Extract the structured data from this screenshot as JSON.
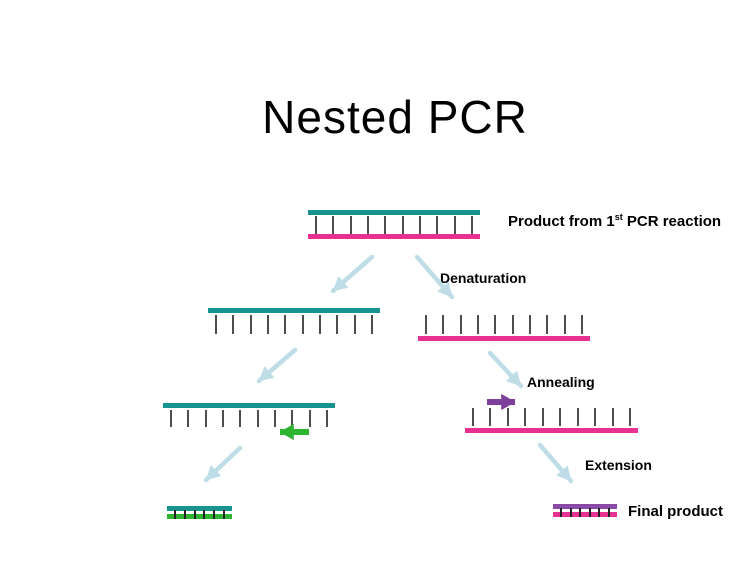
{
  "title": "Nested PCR",
  "labels": {
    "product_prefix": "Product from 1",
    "product_sup": "st",
    "product_suffix": " PCR reaction",
    "denaturation": "Denaturation",
    "annealing": "Annealing",
    "extension": "Extension",
    "final_product": "Final product"
  },
  "colors": {
    "background": "#ffffff",
    "text": "#000000",
    "teal": "#179390",
    "pink": "#e73190",
    "light_blue_arrow": "#bedde7",
    "green": "#2eb430",
    "purple": "#7e3e9c",
    "purple_bar": "#8b4aa5",
    "tick": "#4d4d4d"
  },
  "strands": {
    "product_duplex": {
      "ticks": 10
    },
    "left_template": {
      "ticks": 10
    },
    "right_template": {
      "ticks": 10
    },
    "left_annealed": {
      "ticks": 10
    },
    "right_annealed": {
      "ticks": 10
    },
    "left_final": {
      "ticks": 6
    },
    "right_final": {
      "ticks": 6
    }
  }
}
